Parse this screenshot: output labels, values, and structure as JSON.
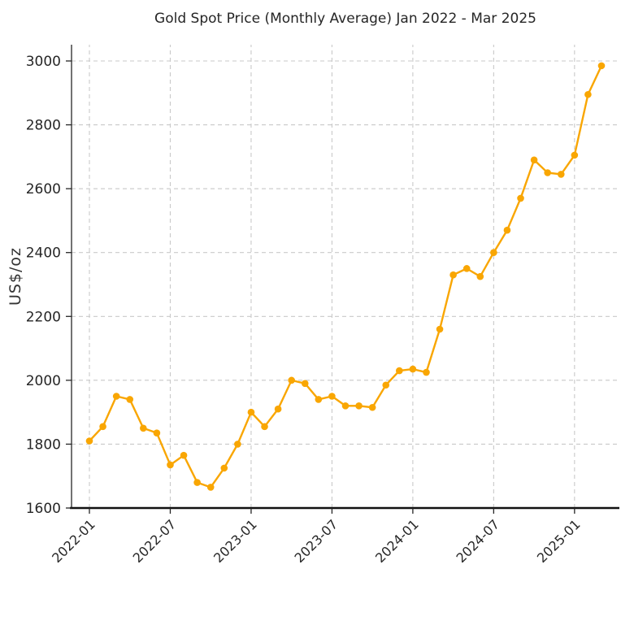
{
  "chart_data": {
    "type": "line",
    "title": "Gold Spot Price (Monthly Average) Jan 2022 - Mar 2025",
    "xlabel": "",
    "ylabel": "US$/oz",
    "x": [
      "2022-01",
      "2022-02",
      "2022-03",
      "2022-04",
      "2022-05",
      "2022-06",
      "2022-07",
      "2022-08",
      "2022-09",
      "2022-10",
      "2022-11",
      "2022-12",
      "2023-01",
      "2023-02",
      "2023-03",
      "2023-04",
      "2023-05",
      "2023-06",
      "2023-07",
      "2023-08",
      "2023-09",
      "2023-10",
      "2023-11",
      "2023-12",
      "2024-01",
      "2024-02",
      "2024-03",
      "2024-04",
      "2024-05",
      "2024-06",
      "2024-07",
      "2024-08",
      "2024-09",
      "2024-10",
      "2024-11",
      "2024-12",
      "2025-01",
      "2025-02",
      "2025-03"
    ],
    "values": [
      1810,
      1855,
      1950,
      1940,
      1850,
      1835,
      1735,
      1765,
      1680,
      1665,
      1725,
      1800,
      1900,
      1855,
      1910,
      2000,
      1990,
      1940,
      1950,
      1920,
      1920,
      1915,
      1985,
      2030,
      2035,
      2025,
      2160,
      2330,
      2350,
      2325,
      2400,
      2470,
      2570,
      2690,
      2650,
      2645,
      2705,
      2895,
      2985
    ],
    "ylim": [
      1600,
      3000
    ],
    "yticks": [
      1600,
      1800,
      2000,
      2200,
      2400,
      2600,
      2800,
      3000
    ],
    "xticks": [
      "2022-01",
      "2022-07",
      "2023-01",
      "2023-07",
      "2024-01",
      "2024-07",
      "2025-01"
    ],
    "grid": true,
    "grid_style": "dashed",
    "legend": false,
    "marker": "circle",
    "styles": {
      "line_color": "#f9a602",
      "marker_color": "#f9a602",
      "grid_color": "#c9c9c9",
      "axis_color": "#262626",
      "text_color": "#262626",
      "background": "#ffffff"
    }
  }
}
